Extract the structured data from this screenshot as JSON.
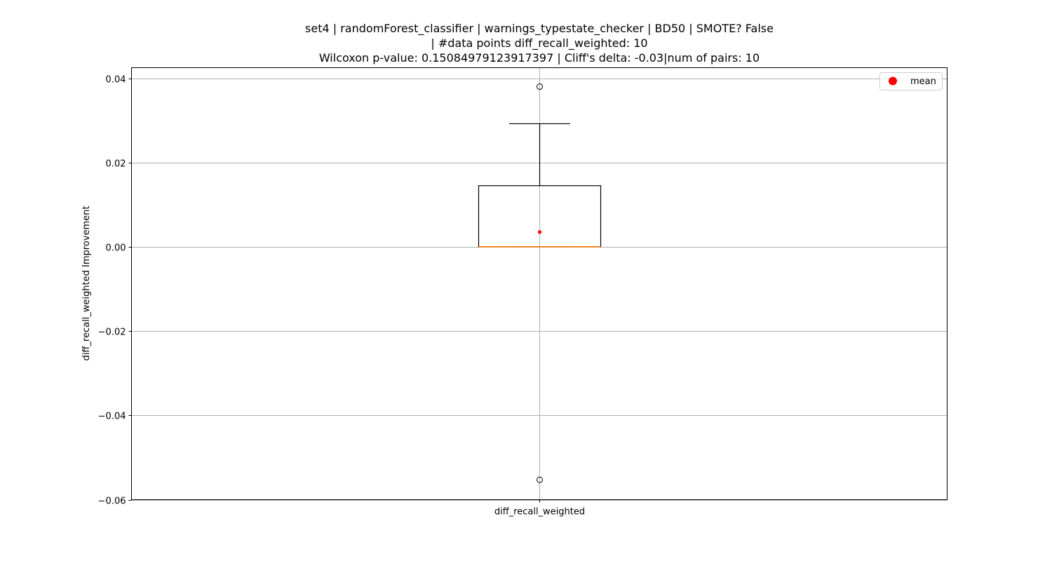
{
  "chart_data": {
    "type": "boxplot",
    "title_lines": [
      "set4 | randomForest_classifier | warnings_typestate_checker | BD50 | SMOTE? False",
      "| #data points diff_recall_weighted: 10",
      "Wilcoxon p-value: 0.15084979123917397 | Cliff's delta: -0.03|num of pairs: 10"
    ],
    "xlabel": "",
    "ylabel": "diff_recall_weighted Improvement",
    "ylim": [
      -0.06,
      0.0425
    ],
    "yticks": [
      -0.06,
      -0.04,
      -0.02,
      0.0,
      0.02,
      0.04
    ],
    "ytick_labels": [
      "−0.06",
      "−0.04",
      "−0.02",
      "0.00",
      "0.02",
      "0.04"
    ],
    "categories": [
      "diff_recall_weighted"
    ],
    "boxes": [
      {
        "label": "diff_recall_weighted",
        "whisker_low": 0.0,
        "q1": 0.0,
        "median": 0.0,
        "q3": 0.0145,
        "whisker_high": 0.0292,
        "mean": 0.0035,
        "outliers": [
          0.038,
          -0.0553
        ]
      }
    ],
    "grid": true,
    "legend": {
      "position": "upper right",
      "entries": [
        {
          "label": "mean",
          "marker": "circle",
          "color": "#ff0000"
        }
      ]
    },
    "colors": {
      "box": "#000000",
      "median": "#ff7f0e",
      "mean": "#ff0000",
      "grid": "#b0b0b0"
    }
  }
}
